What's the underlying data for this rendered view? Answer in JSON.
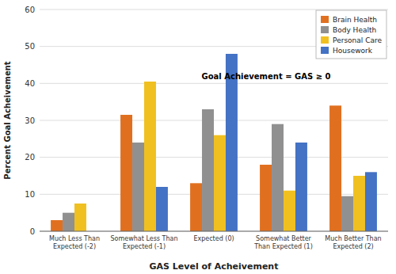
{
  "chart_data": {
    "type": "bar",
    "categories": [
      "Much Less Than\nExpected (-2)",
      "Somewhat Less Than\nExpected (-1)",
      "Expected (0)",
      "Somewhat Better\nThan Expected (1)",
      "Much Better Than\nExpected (2)"
    ],
    "series": [
      {
        "name": "Brain Health",
        "color": "#E07020",
        "values": [
          3,
          31.5,
          13,
          18,
          34
        ]
      },
      {
        "name": "Body Health",
        "color": "#909090",
        "values": [
          5,
          24,
          33,
          29,
          9.5
        ]
      },
      {
        "name": "Personal Care",
        "color": "#F0C020",
        "values": [
          7.5,
          40.5,
          26,
          11,
          15
        ]
      },
      {
        "name": "Housework",
        "color": "#4472C4",
        "values": [
          0,
          12,
          48,
          24,
          16
        ]
      }
    ],
    "xlabel": "GAS Level of Acheivement",
    "ylabel": "Percent Goal Acheivement",
    "ylim": [
      0,
      60
    ],
    "yticks": [
      0,
      10,
      20,
      30,
      40,
      50,
      60
    ],
    "grid": true,
    "legend": "upper right",
    "annotation": "Goal Achievement = GAS ≥ 0"
  }
}
